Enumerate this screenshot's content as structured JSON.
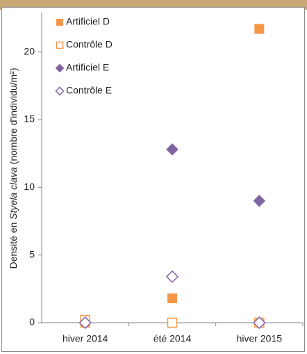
{
  "chart_data": {
    "type": "scatter",
    "ylabel": [
      "Densité en ",
      "Styela clava",
      " (nombre d'individu/m²)"
    ],
    "categories": [
      "hiver 2014",
      "été 2014",
      "hiver 2015"
    ],
    "ylim": [
      0,
      22.5
    ],
    "yticks": [
      0,
      5,
      10,
      15,
      20
    ],
    "series": [
      {
        "name": "Artificiel D",
        "color": "#f79646",
        "marker": "square",
        "filled": true,
        "values": [
          0,
          1.8,
          21.7
        ]
      },
      {
        "name": "Contrôle D",
        "color": "#f79646",
        "marker": "square",
        "filled": false,
        "values": [
          0.2,
          0,
          0
        ]
      },
      {
        "name": "Artificiel E",
        "color": "#8064a2",
        "marker": "diamond",
        "filled": true,
        "values": [
          0,
          12.8,
          9.0
        ]
      },
      {
        "name": "Contrôle E",
        "color": "#8064a2",
        "marker": "diamond",
        "filled": false,
        "values": [
          0,
          3.4,
          0
        ]
      }
    ]
  }
}
